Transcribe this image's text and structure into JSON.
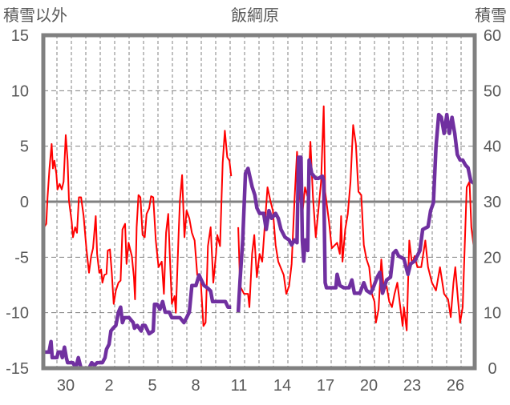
{
  "chart_data": {
    "type": "line",
    "title": "飯綱原",
    "ylabel_left": "積雪以外",
    "ylabel_right": "積雪",
    "ylim_left": [
      -15,
      15
    ],
    "yticks_left": [
      "15",
      "10",
      "5",
      "0",
      "-5",
      "-10",
      "-15"
    ],
    "ylim_right": [
      0,
      60
    ],
    "yticks_right": [
      "60",
      "50",
      "40",
      "30",
      "20",
      "10",
      "0"
    ],
    "xlim_days": [
      0,
      30
    ],
    "xtick_labels": [
      "30",
      "2",
      "5",
      "8",
      "11",
      "14",
      "17",
      "20",
      "23",
      "26"
    ],
    "grid": true,
    "colors": {
      "other": "#ff0000",
      "snow": "#7030a0",
      "axis": "#808080",
      "text": "#595959"
    },
    "series": [
      {
        "name": "積雪以外",
        "axis": "left",
        "points": [
          [
            0,
            -2.3
          ],
          [
            0.15,
            -2
          ],
          [
            0.24,
            0.4
          ],
          [
            0.37,
            3
          ],
          [
            0.52,
            5.2
          ],
          [
            0.61,
            3
          ],
          [
            0.71,
            3.7
          ],
          [
            0.85,
            2.5
          ],
          [
            0.93,
            1.1
          ],
          [
            1.08,
            1.6
          ],
          [
            1.22,
            1.1
          ],
          [
            1.35,
            1.8
          ],
          [
            1.5,
            6
          ],
          [
            1.63,
            3.7
          ],
          [
            1.72,
            0.1
          ],
          [
            1.91,
            -1.8
          ],
          [
            2,
            -3.2
          ],
          [
            2.15,
            -2.3
          ],
          [
            2.28,
            -2.8
          ],
          [
            2.41,
            0.4
          ],
          [
            2.56,
            0.4
          ],
          [
            2.74,
            -1.3
          ],
          [
            2.93,
            -4.2
          ],
          [
            3.11,
            -6.4
          ],
          [
            3.26,
            -4.9
          ],
          [
            3.39,
            -4.2
          ],
          [
            3.58,
            -1.3
          ],
          [
            3.67,
            -4.7
          ],
          [
            3.82,
            -6.4
          ],
          [
            3.95,
            -6.1
          ],
          [
            4.04,
            -7.3
          ],
          [
            4.17,
            -6.6
          ],
          [
            4.32,
            -6.5
          ],
          [
            4.41,
            -4.4
          ],
          [
            4.56,
            -4.3
          ],
          [
            4.69,
            -6.4
          ],
          [
            4.82,
            -9.2
          ],
          [
            4.97,
            -8
          ],
          [
            5.15,
            -7.3
          ],
          [
            5.3,
            -7.1
          ],
          [
            5.43,
            -2.5
          ],
          [
            5.61,
            -2
          ],
          [
            5.71,
            -5.6
          ],
          [
            5.85,
            -3.7
          ],
          [
            6.08,
            -4.9
          ],
          [
            6.22,
            -6.8
          ],
          [
            6.3,
            -8.8
          ],
          [
            6.41,
            -2.3
          ],
          [
            6.54,
            0.6
          ],
          [
            6.67,
            0.4
          ],
          [
            6.82,
            -3
          ],
          [
            6.97,
            -3.2
          ],
          [
            7.1,
            -1.1
          ],
          [
            7.28,
            -0.6
          ],
          [
            7.41,
            0.5
          ],
          [
            7.56,
            0.4
          ],
          [
            7.74,
            -3.5
          ],
          [
            7.93,
            -5.9
          ],
          [
            8.15,
            -5.4
          ],
          [
            8.3,
            -8.3
          ],
          [
            8.45,
            -2.8
          ],
          [
            8.6,
            -1.1
          ],
          [
            8.71,
            -4.9
          ],
          [
            8.85,
            -9.2
          ],
          [
            9.04,
            -8.5
          ],
          [
            9.13,
            -10
          ],
          [
            9.32,
            -2.8
          ],
          [
            9.41,
            0.1
          ],
          [
            9.56,
            2.4
          ],
          [
            9.72,
            -3.2
          ],
          [
            9.87,
            -0.8
          ],
          [
            10.06,
            -1.5
          ],
          [
            10.24,
            -2.8
          ],
          [
            10.43,
            -3.5
          ],
          [
            10.61,
            -6.6
          ],
          [
            10.85,
            -7.1
          ],
          [
            11.04,
            -11.2
          ],
          [
            11.19,
            -10.9
          ],
          [
            11.35,
            -4
          ],
          [
            11.54,
            -2.3
          ],
          [
            11.72,
            -7.3
          ],
          [
            11.91,
            -4.7
          ],
          [
            12,
            -3
          ],
          [
            12.19,
            -4
          ],
          [
            12.37,
            3.5
          ],
          [
            12.52,
            6.4
          ],
          [
            12.69,
            4
          ],
          [
            12.84,
            3.7
          ],
          [
            12.96,
            2.3
          ],
          null,
          [
            13.45,
            -2.3
          ],
          [
            13.58,
            -7.6
          ],
          [
            13.85,
            -8.3
          ],
          [
            14.13,
            -8.3
          ],
          [
            14.22,
            -9.5
          ],
          [
            14.41,
            -4.7
          ],
          [
            14.56,
            -3
          ],
          [
            14.74,
            -6.8
          ],
          [
            14.93,
            -4.7
          ],
          [
            15.11,
            -5.4
          ],
          [
            15.48,
            1.3
          ],
          [
            15.67,
            0.1
          ],
          [
            15.85,
            -0.8
          ],
          [
            16.04,
            -3.9
          ],
          [
            16.22,
            -5.4
          ],
          [
            16.6,
            -6.6
          ],
          [
            16.78,
            -8.3
          ],
          [
            16.97,
            -7.6
          ],
          [
            17.15,
            -5.6
          ],
          [
            17.34,
            -0.1
          ],
          [
            17.52,
            4.5
          ],
          [
            17.71,
            0.6
          ],
          [
            17.89,
            -1.1
          ],
          [
            18.08,
            1.3
          ],
          [
            18.26,
            0.4
          ],
          [
            18.45,
            5.4
          ],
          [
            18.63,
            0.4
          ],
          [
            18.82,
            -3.2
          ],
          [
            19,
            -0.8
          ],
          [
            19.19,
            1.8
          ],
          [
            19.37,
            8.6
          ],
          [
            19.47,
            0.9
          ],
          [
            19.74,
            -1.8
          ],
          [
            19.93,
            -4.2
          ],
          [
            20.3,
            -3.7
          ],
          [
            20.49,
            -4.7
          ],
          [
            20.58,
            -1.3
          ],
          [
            20.67,
            -5.4
          ],
          [
            20.86,
            -2.5
          ],
          [
            21.04,
            -1.1
          ],
          [
            21.23,
            1.8
          ],
          [
            21.41,
            6.9
          ],
          [
            21.6,
            5.2
          ],
          [
            21.78,
            0.9
          ],
          [
            21.97,
            0.6
          ],
          [
            22.15,
            -3.9
          ],
          [
            22.34,
            -5.2
          ],
          [
            22.52,
            -5.9
          ],
          [
            22.71,
            -8.3
          ],
          [
            22.89,
            -9
          ],
          [
            22.99,
            -10.9
          ],
          [
            23.17,
            -9.7
          ],
          [
            23.36,
            -5.2
          ],
          [
            23.54,
            -8
          ],
          [
            23.73,
            -7.6
          ],
          [
            23.91,
            -9
          ],
          [
            24.1,
            -9.5
          ],
          [
            24.28,
            -8.3
          ],
          [
            24.47,
            -7.3
          ],
          [
            24.65,
            -9.2
          ],
          [
            24.84,
            -11.2
          ],
          [
            24.93,
            -9.5
          ],
          [
            25.12,
            -11.6
          ],
          [
            25.3,
            -3.5
          ],
          [
            25.49,
            -5.6
          ],
          [
            25.67,
            -4.9
          ],
          [
            25.86,
            -5.9
          ],
          [
            26.13,
            -5.9
          ],
          [
            26.41,
            -3.5
          ],
          [
            26.6,
            -5.9
          ],
          [
            26.87,
            -7.3
          ],
          [
            27.15,
            -8
          ],
          [
            27.43,
            -5.9
          ],
          [
            27.71,
            -8.3
          ],
          [
            27.99,
            -8.8
          ],
          [
            28.17,
            -10.4
          ],
          [
            28.36,
            -7.3
          ],
          [
            28.49,
            -5.9
          ],
          [
            28.67,
            -8.8
          ],
          [
            28.82,
            -10.9
          ],
          [
            29,
            -9.5
          ],
          [
            29.28,
            1.3
          ],
          [
            29.47,
            1.8
          ],
          [
            29.6,
            -2.3
          ],
          [
            29.75,
            -3.9
          ]
        ]
      },
      {
        "name": "積雪",
        "axis": "right",
        "points": [
          [
            0,
            2.9
          ],
          [
            0.34,
            2.9
          ],
          [
            0.48,
            4.8
          ],
          [
            0.56,
            1.9
          ],
          [
            0.89,
            1.9
          ],
          [
            0.98,
            2.9
          ],
          [
            1.17,
            2.9
          ],
          [
            1.26,
            1.9
          ],
          [
            1.41,
            3.8
          ],
          [
            1.54,
            1.9
          ],
          [
            1.63,
            1
          ],
          [
            2,
            1
          ],
          [
            2.19,
            0
          ],
          [
            2.37,
            1.9
          ],
          [
            2.56,
            0
          ],
          [
            3.11,
            0
          ],
          [
            3.3,
            1
          ],
          [
            3.48,
            0.5
          ],
          [
            3.67,
            1
          ],
          [
            4.04,
            1
          ],
          [
            4.22,
            1.9
          ],
          [
            4.32,
            3.4
          ],
          [
            4.5,
            4.3
          ],
          [
            4.63,
            6.7
          ],
          [
            4.78,
            7.2
          ],
          [
            4.97,
            7.7
          ],
          [
            5.15,
            10.1
          ],
          [
            5.3,
            11
          ],
          [
            5.43,
            8.2
          ],
          [
            5.56,
            9.1
          ],
          [
            5.89,
            9.1
          ],
          [
            6.17,
            8.2
          ],
          [
            6.26,
            7.2
          ],
          [
            6.45,
            7.7
          ],
          [
            6.72,
            6.7
          ],
          [
            6.82,
            7.7
          ],
          [
            7,
            7.7
          ],
          [
            7.28,
            6.2
          ],
          [
            7.56,
            6.7
          ],
          [
            7.65,
            11.5
          ],
          [
            7.84,
            11.5
          ],
          [
            8.02,
            10.6
          ],
          [
            8.21,
            12
          ],
          [
            8.39,
            10.1
          ],
          [
            8.67,
            10.1
          ],
          [
            8.85,
            9.1
          ],
          [
            9.41,
            9.1
          ],
          [
            9.69,
            8.2
          ],
          [
            9.87,
            9.1
          ],
          [
            10.06,
            10.1
          ],
          [
            10.24,
            14.9
          ],
          [
            10.52,
            14.9
          ],
          [
            10.74,
            16.8
          ],
          [
            10.89,
            15.9
          ],
          [
            11.08,
            14.9
          ],
          [
            11.35,
            14.4
          ],
          [
            11.54,
            13.9
          ],
          [
            11.67,
            12
          ],
          [
            12,
            12
          ],
          [
            12.56,
            12
          ],
          [
            12.74,
            11
          ],
          [
            12.96,
            11
          ],
          null,
          [
            13.45,
            10.1
          ],
          [
            13.58,
            15.9
          ],
          [
            13.76,
            23.1
          ],
          [
            13.95,
            35.1
          ],
          [
            14.13,
            36
          ],
          [
            14.41,
            32.7
          ],
          [
            14.6,
            31.2
          ],
          [
            14.74,
            28.9
          ],
          [
            14.93,
            27.9
          ],
          [
            15.21,
            27.9
          ],
          [
            15.39,
            25
          ],
          [
            15.58,
            28.4
          ],
          [
            15.76,
            27
          ],
          [
            16.04,
            27.9
          ],
          [
            16.22,
            27
          ],
          [
            16.41,
            25
          ],
          [
            16.69,
            23.6
          ],
          [
            16.97,
            23.1
          ],
          [
            17.15,
            22.2
          ],
          [
            17.34,
            23.1
          ],
          [
            17.52,
            22.6
          ],
          [
            17.62,
            38
          ],
          [
            17.8,
            38
          ],
          [
            17.89,
            23.1
          ],
          [
            17.99,
            19.3
          ],
          [
            18.08,
            23.1
          ],
          [
            18.26,
            21.2
          ],
          [
            18.36,
            37.5
          ],
          [
            18.54,
            35.1
          ],
          [
            18.82,
            34.2
          ],
          [
            19,
            34.2
          ],
          [
            19.28,
            34.6
          ],
          [
            19.37,
            33.7
          ],
          [
            19.47,
            15.4
          ],
          [
            19.56,
            14.5
          ],
          [
            19.93,
            14.5
          ],
          [
            20.21,
            14.5
          ],
          [
            20.3,
            16.9
          ],
          [
            20.49,
            14.9
          ],
          [
            20.76,
            14.5
          ],
          [
            21.13,
            14.5
          ],
          [
            21.32,
            15.9
          ],
          [
            21.5,
            13.5
          ],
          [
            21.87,
            13.5
          ],
          [
            22.15,
            15.4
          ],
          [
            22.34,
            14
          ],
          [
            22.62,
            13.5
          ],
          [
            22.8,
            14.5
          ],
          [
            23.08,
            16.4
          ],
          [
            23.26,
            17.3
          ],
          [
            23.45,
            13.5
          ],
          [
            23.73,
            15.9
          ],
          [
            24,
            16.4
          ],
          [
            24.19,
            20.7
          ],
          [
            24.37,
            21.2
          ],
          [
            24.56,
            20.2
          ],
          [
            24.93,
            19.7
          ],
          [
            25.21,
            16.9
          ],
          [
            25.39,
            18.8
          ],
          [
            25.67,
            19.3
          ],
          [
            26.04,
            21.2
          ],
          [
            26.23,
            25
          ],
          [
            26.6,
            25.5
          ],
          [
            26.78,
            28.4
          ],
          [
            26.97,
            29.8
          ],
          [
            27.15,
            39.9
          ],
          [
            27.34,
            45.7
          ],
          [
            27.52,
            45.2
          ],
          [
            27.71,
            42.3
          ],
          [
            27.9,
            45.7
          ],
          [
            28.08,
            42.3
          ],
          [
            28.26,
            45.2
          ],
          [
            28.45,
            42.3
          ],
          [
            28.63,
            38.5
          ],
          [
            28.82,
            37.5
          ],
          [
            29,
            37.5
          ],
          [
            29.19,
            36.6
          ],
          [
            29.37,
            36.1
          ],
          [
            29.56,
            33.7
          ],
          [
            29.84,
            33.2
          ]
        ]
      }
    ]
  }
}
